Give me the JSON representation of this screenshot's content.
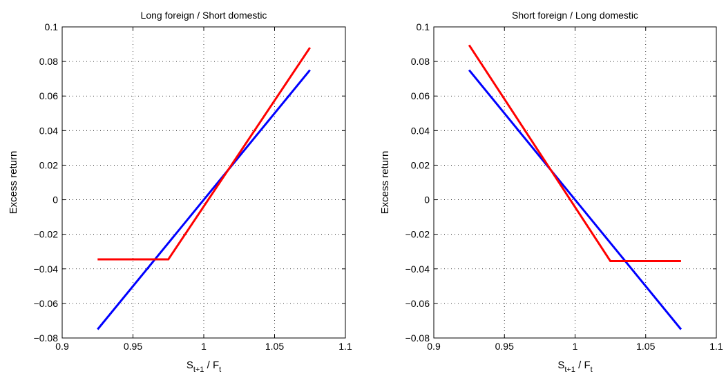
{
  "chart_data": [
    {
      "type": "line",
      "title": "Long foreign / Short domestic",
      "xlabel": {
        "main": "S",
        "sub1": "t+1",
        "mid": " / F",
        "sub2": "t"
      },
      "ylabel": "Excess return",
      "xlim": [
        0.9,
        1.1
      ],
      "ylim": [
        -0.08,
        0.1
      ],
      "xticks": [
        0.9,
        0.95,
        1,
        1.05,
        1.1
      ],
      "xtick_labels": [
        "0.9",
        "0.95",
        "1",
        "1.05",
        "1.1"
      ],
      "yticks": [
        -0.08,
        -0.06,
        -0.04,
        -0.02,
        0,
        0.02,
        0.04,
        0.06,
        0.08,
        0.1
      ],
      "ytick_labels": [
        "−0.08",
        "−0.06",
        "−0.04",
        "−0.02",
        "0",
        "0.02",
        "0.04",
        "0.06",
        "0.08",
        "0.1"
      ],
      "grid": true,
      "series": [
        {
          "color": "#0000ff",
          "x": [
            0.925,
            1.075
          ],
          "y": [
            -0.075,
            0.075
          ]
        },
        {
          "color": "#ff0000",
          "x": [
            0.925,
            0.975,
            1.075
          ],
          "y": [
            -0.0345,
            -0.0345,
            0.088
          ]
        }
      ]
    },
    {
      "type": "line",
      "title": "Short foreign / Long domestic",
      "xlabel": {
        "main": "S",
        "sub1": "t+1",
        "mid": " / F",
        "sub2": "t"
      },
      "ylabel": "Excess return",
      "xlim": [
        0.9,
        1.1
      ],
      "ylim": [
        -0.08,
        0.1
      ],
      "xticks": [
        0.9,
        0.95,
        1,
        1.05,
        1.1
      ],
      "xtick_labels": [
        "0.9",
        "0.95",
        "1",
        "1.05",
        "1.1"
      ],
      "yticks": [
        -0.08,
        -0.06,
        -0.04,
        -0.02,
        0,
        0.02,
        0.04,
        0.06,
        0.08,
        0.1
      ],
      "ytick_labels": [
        "−0.08",
        "−0.06",
        "−0.04",
        "−0.02",
        "0",
        "0.02",
        "0.04",
        "0.06",
        "0.08",
        "0.1"
      ],
      "grid": true,
      "series": [
        {
          "color": "#0000ff",
          "x": [
            0.925,
            1.075
          ],
          "y": [
            0.075,
            -0.075
          ]
        },
        {
          "color": "#ff0000",
          "x": [
            0.925,
            1.025,
            1.075
          ],
          "y": [
            0.0895,
            -0.0355,
            -0.0355
          ]
        }
      ]
    }
  ]
}
